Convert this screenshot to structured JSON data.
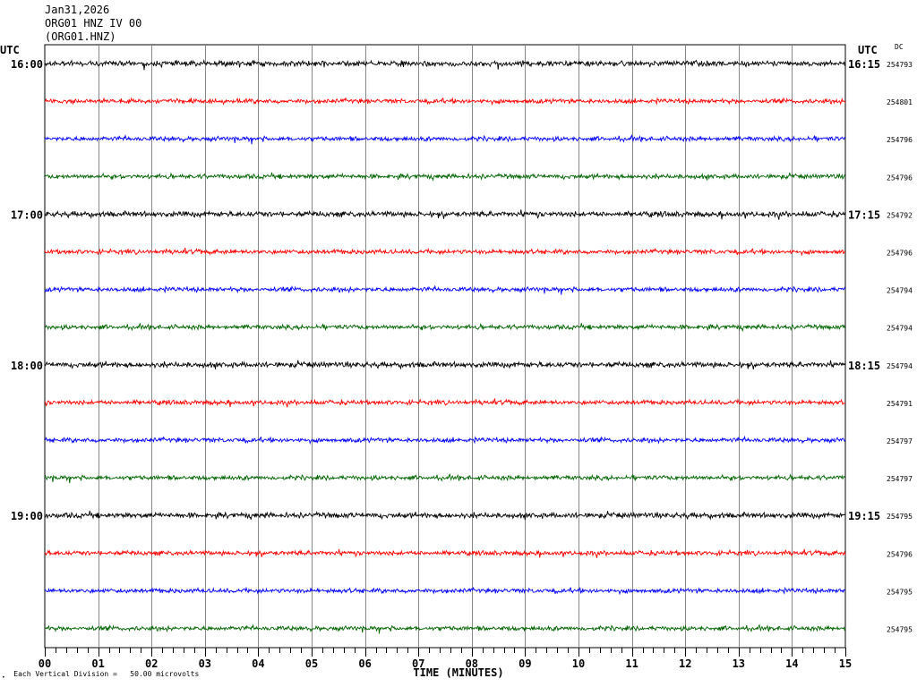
{
  "header": {
    "date": "Jan31,2026",
    "station": "ORG01 HNZ IV 00",
    "channel_code": "(ORG01.HNZ)"
  },
  "utc_left_label": "UTC",
  "utc_right_label": "UTC",
  "dc_label": "DC",
  "footer": {
    "scale_note": "Each Vertical Division =   50.00 microvolts",
    "x_axis_title": "TIME (MINUTES)"
  },
  "colors": {
    "cycle": [
      "#000000",
      "#ff0000",
      "#0000ff",
      "#006400"
    ]
  },
  "chart_data": {
    "type": "line",
    "title": "",
    "xlabel": "TIME (MINUTES)",
    "xlim": [
      0,
      15
    ],
    "x_ticks": [
      "00",
      "01",
      "02",
      "03",
      "04",
      "05",
      "06",
      "07",
      "08",
      "09",
      "10",
      "11",
      "12",
      "13",
      "14",
      "15"
    ],
    "rows": [
      {
        "left": "16:00",
        "right": "16:15",
        "dc": "254793",
        "color": "#000000"
      },
      {
        "left": "",
        "right": "",
        "dc": "254801",
        "color": "#ff0000"
      },
      {
        "left": "",
        "right": "",
        "dc": "254796",
        "color": "#0000ff"
      },
      {
        "left": "",
        "right": "",
        "dc": "254796",
        "color": "#006400"
      },
      {
        "left": "17:00",
        "right": "17:15",
        "dc": "254792",
        "color": "#000000"
      },
      {
        "left": "",
        "right": "",
        "dc": "254796",
        "color": "#ff0000"
      },
      {
        "left": "",
        "right": "",
        "dc": "254794",
        "color": "#0000ff"
      },
      {
        "left": "",
        "right": "",
        "dc": "254794",
        "color": "#006400"
      },
      {
        "left": "18:00",
        "right": "18:15",
        "dc": "254794",
        "color": "#000000"
      },
      {
        "left": "",
        "right": "",
        "dc": "254791",
        "color": "#ff0000"
      },
      {
        "left": "",
        "right": "",
        "dc": "254797",
        "color": "#0000ff"
      },
      {
        "left": "",
        "right": "",
        "dc": "254797",
        "color": "#006400"
      },
      {
        "left": "19:00",
        "right": "19:15",
        "dc": "254795",
        "color": "#000000"
      },
      {
        "left": "",
        "right": "",
        "dc": "254796",
        "color": "#ff0000"
      },
      {
        "left": "",
        "right": "",
        "dc": "254795",
        "color": "#0000ff"
      },
      {
        "left": "",
        "right": "",
        "dc": "254795",
        "color": "#006400"
      }
    ],
    "grid": true
  }
}
